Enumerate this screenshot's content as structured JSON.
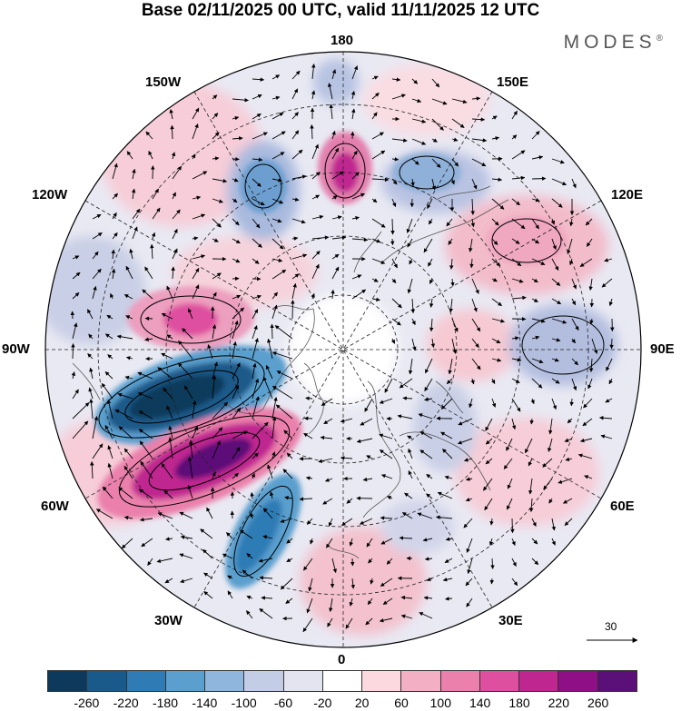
{
  "title": "Base 02/11/2025 00 UTC, valid 11/11/2025 12 UTC",
  "brand": "MODES",
  "brand_mark": "®",
  "longitude_labels": {
    "lon_180": "180",
    "lon_150w": "150W",
    "lon_150e": "150E",
    "lon_120w": "120W",
    "lon_120e": "120E",
    "lon_90w": "90W",
    "lon_90e": "90E",
    "lon_60w": "60W",
    "lon_60e": "60E",
    "lon_30w": "30W",
    "lon_30e": "30E",
    "lon_0": "0"
  },
  "reference_vector": "30",
  "colorbar": {
    "colors": [
      "#0d3a5c",
      "#1a5a8a",
      "#2e7bb5",
      "#5a9fce",
      "#8fb6dd",
      "#c4cde6",
      "#e4e4f1",
      "#ffffff",
      "#fbd9de",
      "#f3b0c4",
      "#ea80ab",
      "#df4fa0",
      "#c02690",
      "#8e0f86",
      "#5b0f78"
    ],
    "labels": [
      "-260",
      "-220",
      "-180",
      "-140",
      "-100",
      "-60",
      "-20",
      "20",
      "60",
      "100",
      "140",
      "180",
      "220",
      "260"
    ]
  },
  "map_layers": {
    "projection": "north-polar-stereographic",
    "field": "anomaly shading with wind vectors"
  }
}
